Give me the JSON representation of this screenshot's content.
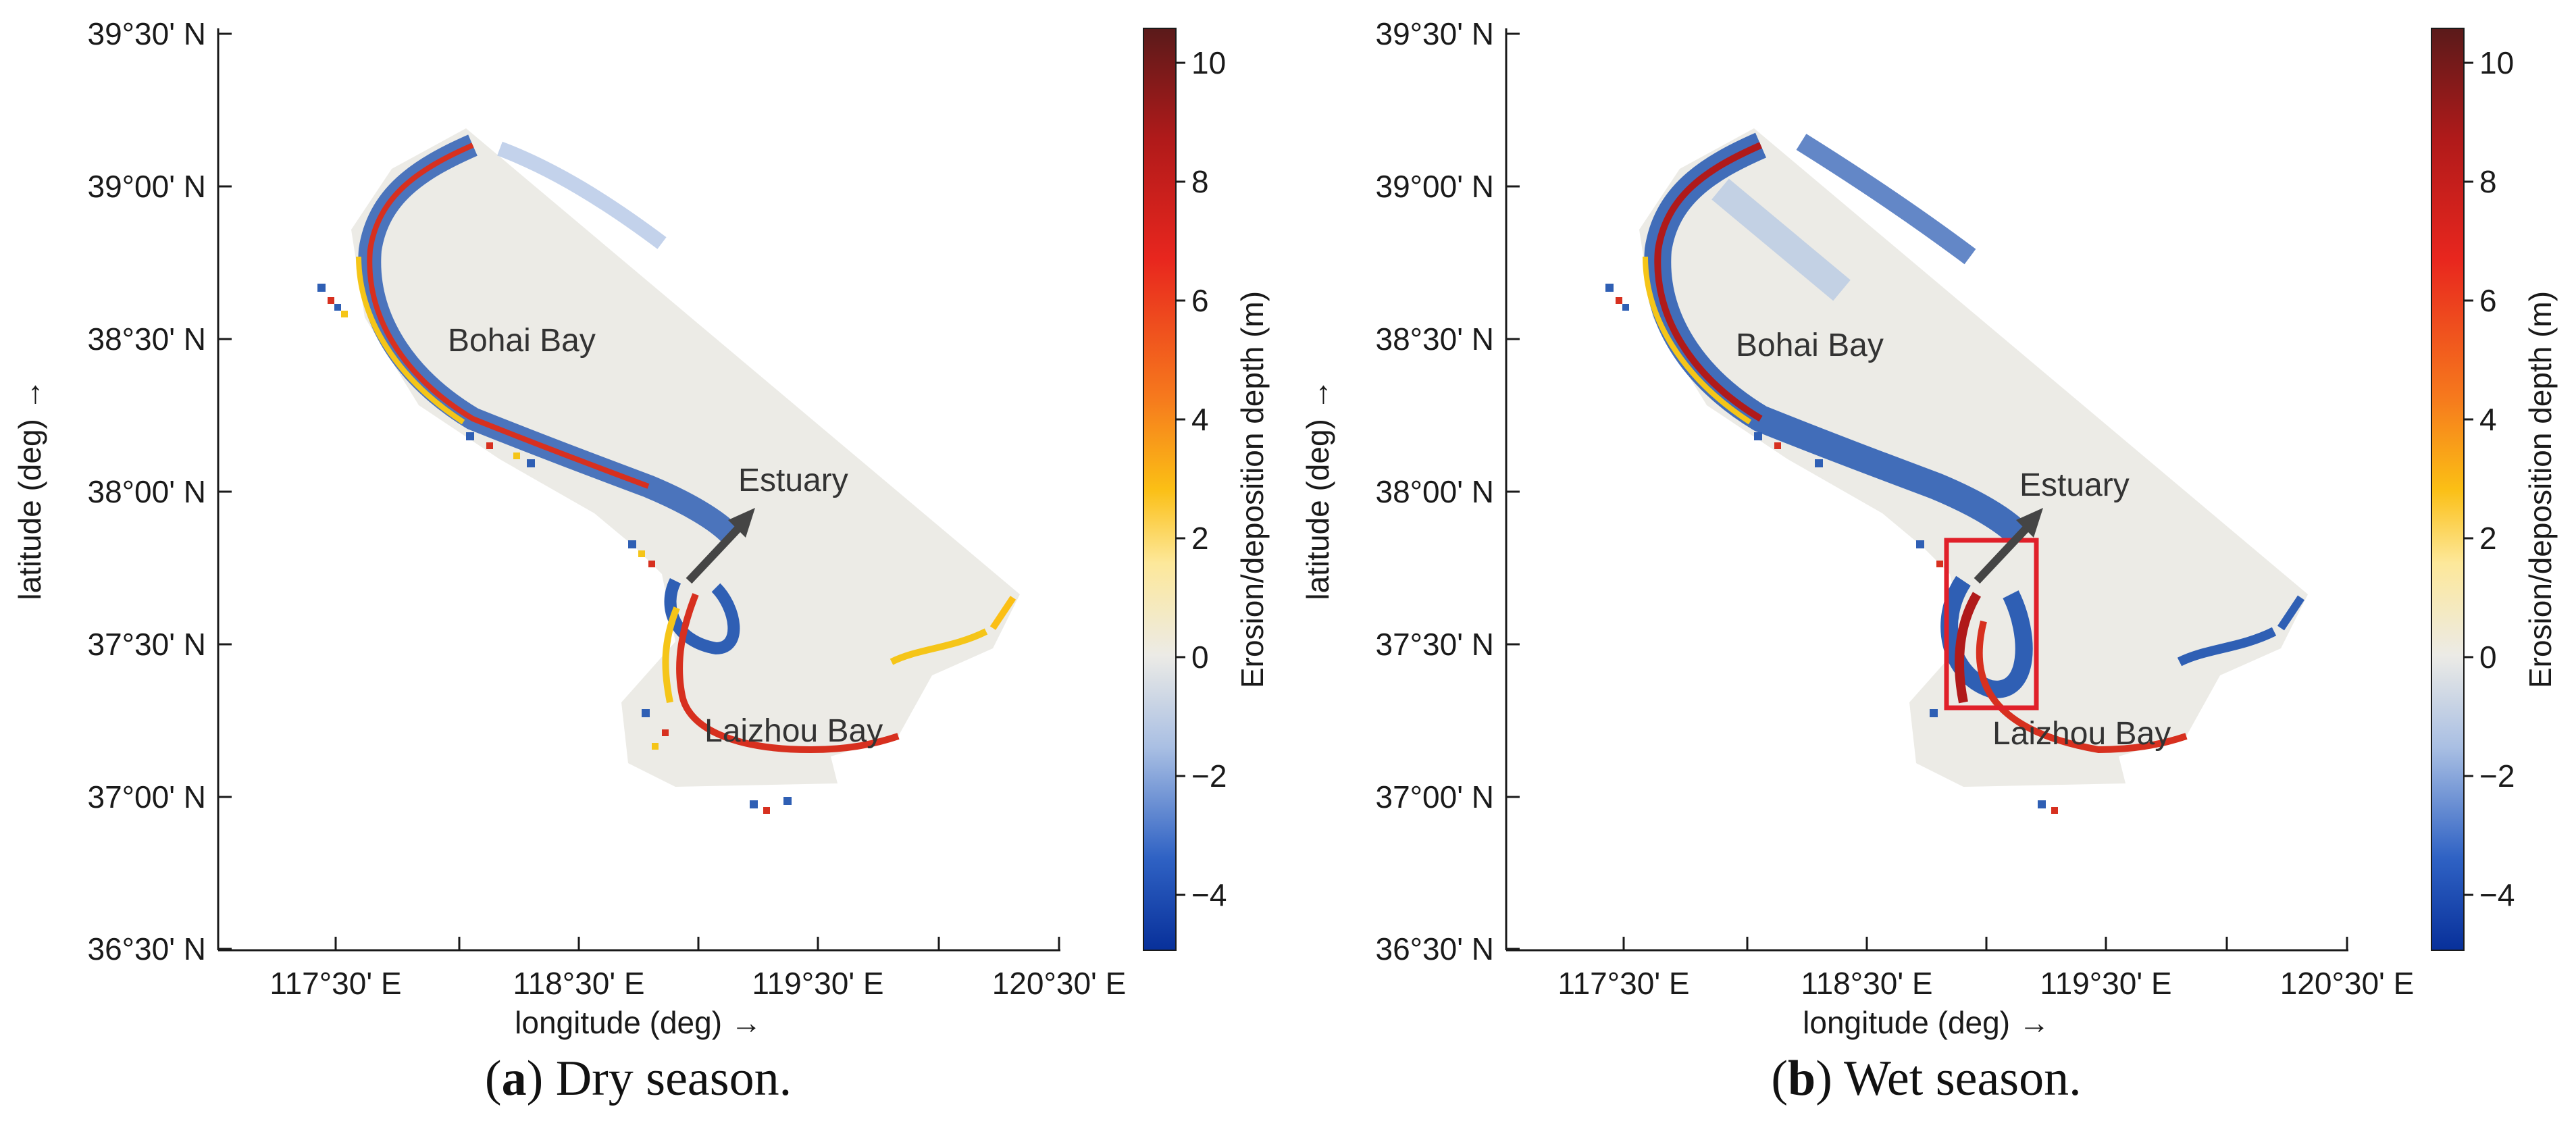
{
  "panels": [
    {
      "id": "a",
      "caption_letter": "a",
      "caption_text": ") Dry season.",
      "caption_open": "(",
      "x_ticks": [
        "117°30' E",
        "118°30' E",
        "119°30' E",
        "120°30' E"
      ],
      "y_ticks": [
        "39°30' N",
        "39°00' N",
        "38°30' N",
        "38°00' N",
        "37°30' N",
        "37°00' N",
        "36°30' N"
      ],
      "xlabel": "longitude (deg) →",
      "ylabel": "latitude (deg) →",
      "labels": {
        "bohai": "Bohai Bay",
        "estuary": "Estuary",
        "laizhou": "Laizhou Bay"
      },
      "colorbar": {
        "label": "Erosion/deposition depth (m)",
        "ticks": [
          "10",
          "8",
          "6",
          "4",
          "2",
          "0",
          "−2",
          "−4"
        ],
        "range": [
          -5,
          10.5
        ]
      },
      "highlight_box": false
    },
    {
      "id": "b",
      "caption_letter": "b",
      "caption_text": ") Wet season.",
      "caption_open": "(",
      "x_ticks": [
        "117°30' E",
        "118°30' E",
        "119°30' E",
        "120°30' E"
      ],
      "y_ticks": [
        "39°30' N",
        "39°00' N",
        "38°30' N",
        "38°00' N",
        "37°30' N",
        "37°00' N",
        "36°30' N"
      ],
      "xlabel": "longitude (deg) →",
      "ylabel": "latitude (deg) →",
      "labels": {
        "bohai": "Bohai Bay",
        "estuary": "Estuary",
        "laizhou": "Laizhou Bay"
      },
      "colorbar": {
        "label": "Erosion/deposition depth (m)",
        "ticks": [
          "10",
          "8",
          "6",
          "4",
          "2",
          "0",
          "−2",
          "−4"
        ],
        "range": [
          -5,
          10.5
        ]
      },
      "highlight_box": true
    }
  ],
  "colors": {
    "land_fill": "#ecebe6",
    "erosion_blue": "#2f5fb4",
    "deposition_red": "#d7301f",
    "deposition_yellow": "#f5c518",
    "highlight_box": "#e0202a",
    "arrow": "#454545"
  }
}
